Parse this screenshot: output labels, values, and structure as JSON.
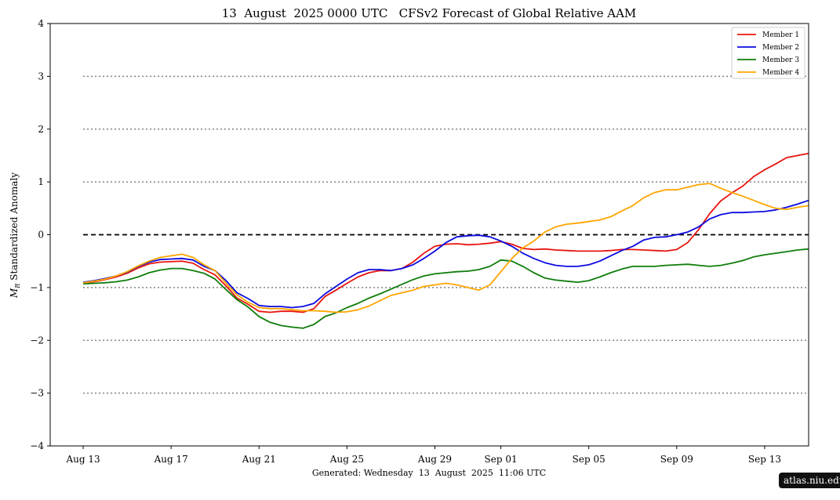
{
  "chart_data": {
    "type": "line",
    "title": "13  August  2025 0000 UTC   CFSv2 Forecast of Global Relative AAM",
    "ylabel": "Standardized Anomaly",
    "ylabel_symbol": "M",
    "ylabel_subscript": "R",
    "footer": "Generated: Wednesday  13  August  2025  11:06 UTC",
    "ylim": [
      -4,
      4
    ],
    "yticks": [
      -4,
      -3,
      -2,
      -1,
      0,
      1,
      2,
      3,
      4
    ],
    "ytick_labels": [
      "−4",
      "−3",
      "−2",
      "−1",
      "0",
      "1",
      "2",
      "3",
      "4"
    ],
    "xlim": [
      -1.5,
      33
    ],
    "xticks": [
      {
        "x": 0,
        "label": "Aug 13"
      },
      {
        "x": 4,
        "label": "Aug 17"
      },
      {
        "x": 8,
        "label": "Aug 21"
      },
      {
        "x": 12,
        "label": "Aug 25"
      },
      {
        "x": 16,
        "label": "Aug 29"
      },
      {
        "x": 19,
        "label": "Sep 01"
      },
      {
        "x": 23,
        "label": "Sep 05"
      },
      {
        "x": 27,
        "label": "Sep 09"
      },
      {
        "x": 31,
        "label": "Sep 13"
      }
    ],
    "x_units": "days since Aug 13 2025 00 UTC",
    "hlines": [
      {
        "y": 3,
        "style": "dotted",
        "color": "#808080"
      },
      {
        "y": 2,
        "style": "dotted",
        "color": "#808080"
      },
      {
        "y": 1,
        "style": "dotted",
        "color": "#808080"
      },
      {
        "y": 0,
        "style": "dashed",
        "color": "#000000"
      },
      {
        "y": -1,
        "style": "dotted",
        "color": "#808080"
      },
      {
        "y": -2,
        "style": "dotted",
        "color": "#808080"
      },
      {
        "y": -3,
        "style": "dotted",
        "color": "#808080"
      }
    ],
    "hline_xrange": [
      0,
      33
    ],
    "legend_position": "top-right",
    "series": [
      {
        "name": "Member 1",
        "color": "#e8140f",
        "x": [
          0,
          0.5,
          1,
          1.5,
          2,
          2.5,
          3,
          3.5,
          4,
          4.5,
          5,
          5.5,
          6,
          6.5,
          7,
          7.5,
          8,
          8.5,
          9,
          9.5,
          10,
          10.5,
          11,
          11.5,
          12,
          12.5,
          13,
          13.5,
          14,
          14.5,
          15,
          15.5,
          16,
          16.5,
          17,
          17.5,
          18,
          18.5,
          19,
          19.5,
          20,
          20.5,
          21,
          21.5,
          22,
          22.5,
          23,
          23.5,
          24,
          24.5,
          25,
          25.5,
          26,
          26.5,
          27,
          27.5,
          28,
          28.5,
          29,
          29.5,
          30,
          30.5,
          31,
          31.5,
          32,
          32.5,
          33
        ],
        "y": [
          -0.92,
          -0.89,
          -0.85,
          -0.8,
          -0.73,
          -0.63,
          -0.55,
          -0.52,
          -0.51,
          -0.5,
          -0.54,
          -0.66,
          -0.76,
          -0.97,
          -1.2,
          -1.32,
          -1.45,
          -1.47,
          -1.45,
          -1.45,
          -1.47,
          -1.4,
          -1.17,
          -1.05,
          -0.92,
          -0.8,
          -0.72,
          -0.68,
          -0.68,
          -0.64,
          -0.52,
          -0.35,
          -0.22,
          -0.18,
          -0.17,
          -0.19,
          -0.18,
          -0.16,
          -0.13,
          -0.18,
          -0.26,
          -0.28,
          -0.27,
          -0.29,
          -0.3,
          -0.31,
          -0.31,
          -0.31,
          -0.3,
          -0.28,
          -0.28,
          -0.29,
          -0.3,
          -0.31,
          -0.28,
          -0.15,
          0.1,
          0.4,
          0.64,
          0.79,
          0.92,
          1.1,
          1.23,
          1.34,
          1.46,
          1.5,
          1.54
        ]
      },
      {
        "name": "Member 2",
        "color": "#0b0be0",
        "x": [
          0,
          0.5,
          1,
          1.5,
          2,
          2.5,
          3,
          3.5,
          4,
          4.5,
          5,
          5.5,
          6,
          6.5,
          7,
          7.5,
          8,
          8.5,
          9,
          9.5,
          10,
          10.5,
          11,
          11.5,
          12,
          12.5,
          13,
          13.5,
          14,
          14.5,
          15,
          15.5,
          16,
          16.5,
          17,
          17.5,
          18,
          18.5,
          19,
          19.5,
          20,
          20.5,
          21,
          21.5,
          22,
          22.5,
          23,
          23.5,
          24,
          24.5,
          25,
          25.5,
          26,
          26.5,
          27,
          27.5,
          28,
          28.5,
          29,
          29.5,
          30,
          30.5,
          31,
          31.5,
          32,
          32.5,
          33
        ],
        "y": [
          -0.9,
          -0.87,
          -0.83,
          -0.78,
          -0.71,
          -0.6,
          -0.52,
          -0.47,
          -0.46,
          -0.45,
          -0.48,
          -0.6,
          -0.68,
          -0.87,
          -1.1,
          -1.21,
          -1.34,
          -1.36,
          -1.36,
          -1.38,
          -1.36,
          -1.3,
          -1.12,
          -0.98,
          -0.84,
          -0.72,
          -0.66,
          -0.66,
          -0.68,
          -0.64,
          -0.57,
          -0.45,
          -0.31,
          -0.15,
          -0.04,
          -0.02,
          -0.01,
          -0.04,
          -0.12,
          -0.22,
          -0.35,
          -0.45,
          -0.53,
          -0.58,
          -0.6,
          -0.6,
          -0.57,
          -0.5,
          -0.4,
          -0.3,
          -0.22,
          -0.1,
          -0.05,
          -0.04,
          0.0,
          0.05,
          0.15,
          0.3,
          0.38,
          0.42,
          0.42,
          0.43,
          0.44,
          0.47,
          0.52,
          0.58,
          0.65
        ]
      },
      {
        "name": "Member 3",
        "color": "#0f7d0a",
        "x": [
          0,
          0.5,
          1,
          1.5,
          2,
          2.5,
          3,
          3.5,
          4,
          4.5,
          5,
          5.5,
          6,
          6.5,
          7,
          7.5,
          8,
          8.5,
          9,
          9.5,
          10,
          10.5,
          11,
          11.5,
          12,
          12.5,
          13,
          13.5,
          14,
          14.5,
          15,
          15.5,
          16,
          16.5,
          17,
          17.5,
          18,
          18.5,
          19,
          19.5,
          20,
          20.5,
          21,
          21.5,
          22,
          22.5,
          23,
          23.5,
          24,
          24.5,
          25,
          25.5,
          26,
          26.5,
          27,
          27.5,
          28,
          28.5,
          29,
          29.5,
          30,
          30.5,
          31,
          31.5,
          32,
          32.5,
          33
        ],
        "y": [
          -0.93,
          -0.92,
          -0.91,
          -0.89,
          -0.86,
          -0.8,
          -0.72,
          -0.67,
          -0.64,
          -0.64,
          -0.68,
          -0.73,
          -0.84,
          -1.04,
          -1.23,
          -1.37,
          -1.55,
          -1.66,
          -1.72,
          -1.75,
          -1.77,
          -1.7,
          -1.55,
          -1.48,
          -1.38,
          -1.3,
          -1.2,
          -1.12,
          -1.03,
          -0.94,
          -0.85,
          -0.78,
          -0.74,
          -0.72,
          -0.7,
          -0.69,
          -0.66,
          -0.6,
          -0.48,
          -0.5,
          -0.6,
          -0.72,
          -0.82,
          -0.86,
          -0.88,
          -0.9,
          -0.87,
          -0.8,
          -0.72,
          -0.65,
          -0.6,
          -0.6,
          -0.6,
          -0.58,
          -0.57,
          -0.56,
          -0.58,
          -0.6,
          -0.58,
          -0.54,
          -0.49,
          -0.42,
          -0.38,
          -0.35,
          -0.32,
          -0.29,
          -0.27
        ]
      },
      {
        "name": "Member 4",
        "color": "#ffa500",
        "x": [
          0,
          0.5,
          1,
          1.5,
          2,
          2.5,
          3,
          3.5,
          4,
          4.5,
          5,
          5.5,
          6,
          6.5,
          7,
          7.5,
          8,
          8.5,
          9,
          9.5,
          10,
          10.5,
          11,
          11.5,
          12,
          12.5,
          13,
          13.5,
          14,
          14.5,
          15,
          15.5,
          16,
          16.5,
          17,
          17.5,
          18,
          18.5,
          19,
          19.5,
          20,
          20.5,
          21,
          21.5,
          22,
          22.5,
          23,
          23.5,
          24,
          24.5,
          25,
          25.5,
          26,
          26.5,
          27,
          27.5,
          28,
          28.5,
          29,
          29.5,
          30,
          30.5,
          31,
          31.5,
          32,
          32.5,
          33
        ],
        "y": [
          -0.91,
          -0.88,
          -0.84,
          -0.78,
          -0.7,
          -0.59,
          -0.5,
          -0.43,
          -0.4,
          -0.37,
          -0.43,
          -0.57,
          -0.68,
          -0.92,
          -1.14,
          -1.28,
          -1.38,
          -1.4,
          -1.4,
          -1.42,
          -1.44,
          -1.44,
          -1.45,
          -1.47,
          -1.46,
          -1.42,
          -1.35,
          -1.25,
          -1.15,
          -1.1,
          -1.05,
          -0.98,
          -0.95,
          -0.92,
          -0.95,
          -1.0,
          -1.05,
          -0.95,
          -0.7,
          -0.45,
          -0.25,
          -0.12,
          0.05,
          0.15,
          0.2,
          0.22,
          0.25,
          0.28,
          0.34,
          0.45,
          0.55,
          0.7,
          0.8,
          0.85,
          0.85,
          0.9,
          0.95,
          0.97,
          0.88,
          0.8,
          0.73,
          0.65,
          0.57,
          0.5,
          0.48,
          0.52,
          0.55
        ]
      }
    ]
  },
  "watermark": "atlas.niu.edu"
}
